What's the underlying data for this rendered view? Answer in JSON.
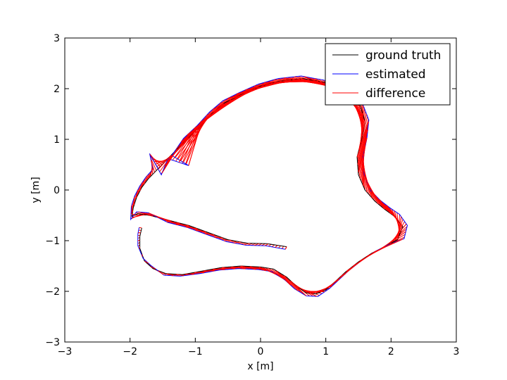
{
  "chart_data": {
    "type": "line",
    "title": "",
    "xlabel": "x [m]",
    "ylabel": "y [m]",
    "xlim": [
      -3,
      3
    ],
    "ylim": [
      -3,
      3
    ],
    "xticks": [
      -3,
      -2,
      -1,
      0,
      1,
      2,
      3
    ],
    "yticks": [
      -3,
      -2,
      -1,
      0,
      1,
      2,
      3
    ],
    "xtick_labels": [
      "−3",
      "−2",
      "−1",
      "0",
      "1",
      "2",
      "3"
    ],
    "ytick_labels": [
      "−3",
      "−2",
      "−1",
      "0",
      "1",
      "2",
      "3"
    ],
    "grid": false,
    "legend_position": "top-right",
    "series": [
      {
        "name": "ground truth",
        "color": "#000000",
        "points": [
          [
            0.4,
            -1.12
          ],
          [
            0.1,
            -1.06
          ],
          [
            -0.2,
            -1.05
          ],
          [
            -0.5,
            -0.98
          ],
          [
            -0.8,
            -0.84
          ],
          [
            -1.1,
            -0.7
          ],
          [
            -1.4,
            -0.6
          ],
          [
            -1.7,
            -0.5
          ],
          [
            -1.88,
            -0.47
          ],
          [
            -1.97,
            -0.52
          ],
          [
            -1.95,
            -0.35
          ],
          [
            -1.9,
            -0.15
          ],
          [
            -1.82,
            0.05
          ],
          [
            -1.72,
            0.22
          ],
          [
            -1.6,
            0.38
          ],
          [
            -1.45,
            0.58
          ],
          [
            -1.3,
            0.78
          ],
          [
            -1.15,
            0.98
          ],
          [
            -0.95,
            1.22
          ],
          [
            -0.75,
            1.5
          ],
          [
            -0.55,
            1.72
          ],
          [
            -0.3,
            1.88
          ],
          [
            0.0,
            2.05
          ],
          [
            0.3,
            2.15
          ],
          [
            0.65,
            2.2
          ],
          [
            1.0,
            2.12
          ],
          [
            1.3,
            1.95
          ],
          [
            1.52,
            1.7
          ],
          [
            1.6,
            1.35
          ],
          [
            1.55,
            1.0
          ],
          [
            1.48,
            0.65
          ],
          [
            1.5,
            0.3
          ],
          [
            1.6,
            0.0
          ],
          [
            1.75,
            -0.22
          ],
          [
            1.9,
            -0.38
          ],
          [
            2.05,
            -0.52
          ],
          [
            2.18,
            -0.72
          ],
          [
            2.1,
            -0.98
          ],
          [
            1.9,
            -1.12
          ],
          [
            1.7,
            -1.25
          ],
          [
            1.5,
            -1.42
          ],
          [
            1.3,
            -1.62
          ],
          [
            1.15,
            -1.8
          ],
          [
            1.0,
            -1.97
          ],
          [
            0.85,
            -2.05
          ],
          [
            0.7,
            -2.03
          ],
          [
            0.55,
            -1.9
          ],
          [
            0.4,
            -1.72
          ],
          [
            0.2,
            -1.56
          ],
          [
            0.0,
            -1.52
          ],
          [
            -0.3,
            -1.5
          ],
          [
            -0.6,
            -1.53
          ],
          [
            -0.9,
            -1.6
          ],
          [
            -1.2,
            -1.67
          ],
          [
            -1.45,
            -1.65
          ],
          [
            -1.65,
            -1.55
          ],
          [
            -1.78,
            -1.4
          ],
          [
            -1.85,
            -1.15
          ],
          [
            -1.85,
            -0.92
          ],
          [
            -1.82,
            -0.75
          ]
        ]
      },
      {
        "name": "estimated",
        "color": "#0000ff",
        "points": [
          [
            0.38,
            -1.17
          ],
          [
            0.08,
            -1.1
          ],
          [
            -0.22,
            -1.09
          ],
          [
            -0.52,
            -1.02
          ],
          [
            -0.82,
            -0.88
          ],
          [
            -1.12,
            -0.74
          ],
          [
            -1.42,
            -0.64
          ],
          [
            -1.72,
            -0.45
          ],
          [
            -1.9,
            -0.43
          ],
          [
            -1.99,
            -0.58
          ],
          [
            -1.98,
            -0.32
          ],
          [
            -1.93,
            -0.12
          ],
          [
            -1.85,
            0.08
          ],
          [
            -1.76,
            0.25
          ],
          [
            -1.65,
            0.41
          ],
          [
            -1.7,
            0.72
          ],
          [
            -1.52,
            0.3
          ],
          [
            -1.42,
            0.62
          ],
          [
            -1.1,
            0.48
          ],
          [
            -1.36,
            0.68
          ],
          [
            -1.18,
            1.02
          ],
          [
            -0.98,
            1.26
          ],
          [
            -0.78,
            1.54
          ],
          [
            -0.58,
            1.76
          ],
          [
            -0.33,
            1.92
          ],
          [
            -0.03,
            2.09
          ],
          [
            0.27,
            2.2
          ],
          [
            0.62,
            2.25
          ],
          [
            0.97,
            2.17
          ],
          [
            1.28,
            2.0
          ],
          [
            1.55,
            1.75
          ],
          [
            1.66,
            1.38
          ],
          [
            1.63,
            1.02
          ],
          [
            1.57,
            0.66
          ],
          [
            1.59,
            0.3
          ],
          [
            1.68,
            0.0
          ],
          [
            1.83,
            -0.2
          ],
          [
            1.98,
            -0.35
          ],
          [
            2.13,
            -0.48
          ],
          [
            2.25,
            -0.7
          ],
          [
            2.2,
            -0.96
          ],
          [
            1.96,
            -1.08
          ],
          [
            1.76,
            -1.21
          ],
          [
            1.56,
            -1.38
          ],
          [
            1.36,
            -1.58
          ],
          [
            1.21,
            -1.76
          ],
          [
            1.06,
            -1.94
          ],
          [
            0.88,
            -2.1
          ],
          [
            0.7,
            -2.09
          ],
          [
            0.52,
            -1.95
          ],
          [
            0.37,
            -1.77
          ],
          [
            0.17,
            -1.61
          ],
          [
            -0.03,
            -1.57
          ],
          [
            -0.33,
            -1.55
          ],
          [
            -0.63,
            -1.58
          ],
          [
            -0.93,
            -1.65
          ],
          [
            -1.23,
            -1.7
          ],
          [
            -1.48,
            -1.68
          ],
          [
            -1.68,
            -1.49
          ],
          [
            -1.8,
            -1.35
          ],
          [
            -1.88,
            -1.1
          ],
          [
            -1.88,
            -0.87
          ],
          [
            -1.86,
            -0.74
          ]
        ]
      },
      {
        "name": "difference",
        "color": "#ff0000",
        "points": []
      }
    ]
  }
}
